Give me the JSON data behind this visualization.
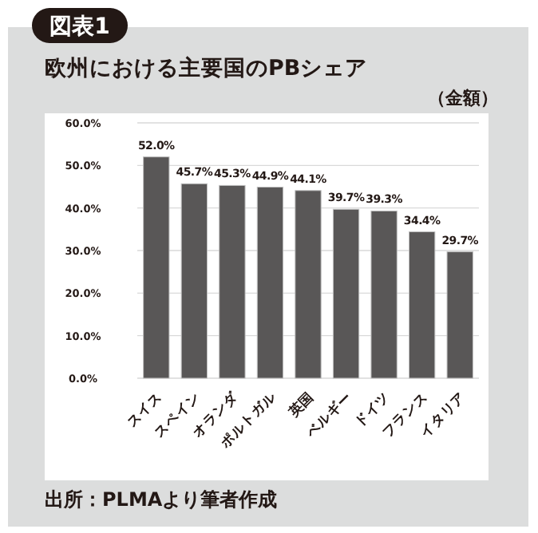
{
  "chart_data": {
    "type": "bar",
    "title": "欧州における主要国のPBシェア",
    "subtitle": "（金額）",
    "annotations": [
      "図表1",
      "出所：PLMAより筆者作成"
    ],
    "categories": [
      "スイス",
      "スペイン",
      "オランダ",
      "ポルトガル",
      "英国",
      "ベルギー",
      "ドイツ",
      "フランス",
      "イタリア"
    ],
    "values": [
      52.0,
      45.7,
      45.3,
      44.9,
      44.1,
      39.7,
      39.3,
      34.4,
      29.7
    ],
    "value_labels": [
      "52.0%",
      "45.7%",
      "45.3%",
      "44.9%",
      "44.1%",
      "39.7%",
      "39.3%",
      "34.4%",
      "29.7%"
    ],
    "color": "#595757",
    "ylim": [
      0,
      60
    ],
    "yticks": [
      {
        "value": 0,
        "label": "0.0%"
      },
      {
        "value": 10,
        "label": "10.0%"
      },
      {
        "value": 20,
        "label": "20.0%"
      },
      {
        "value": 30,
        "label": "30.0%"
      },
      {
        "value": 40,
        "label": "40.0%"
      },
      {
        "value": 50,
        "label": "50.0%"
      },
      {
        "value": 60,
        "label": "60.0%"
      }
    ],
    "grid": "y"
  }
}
